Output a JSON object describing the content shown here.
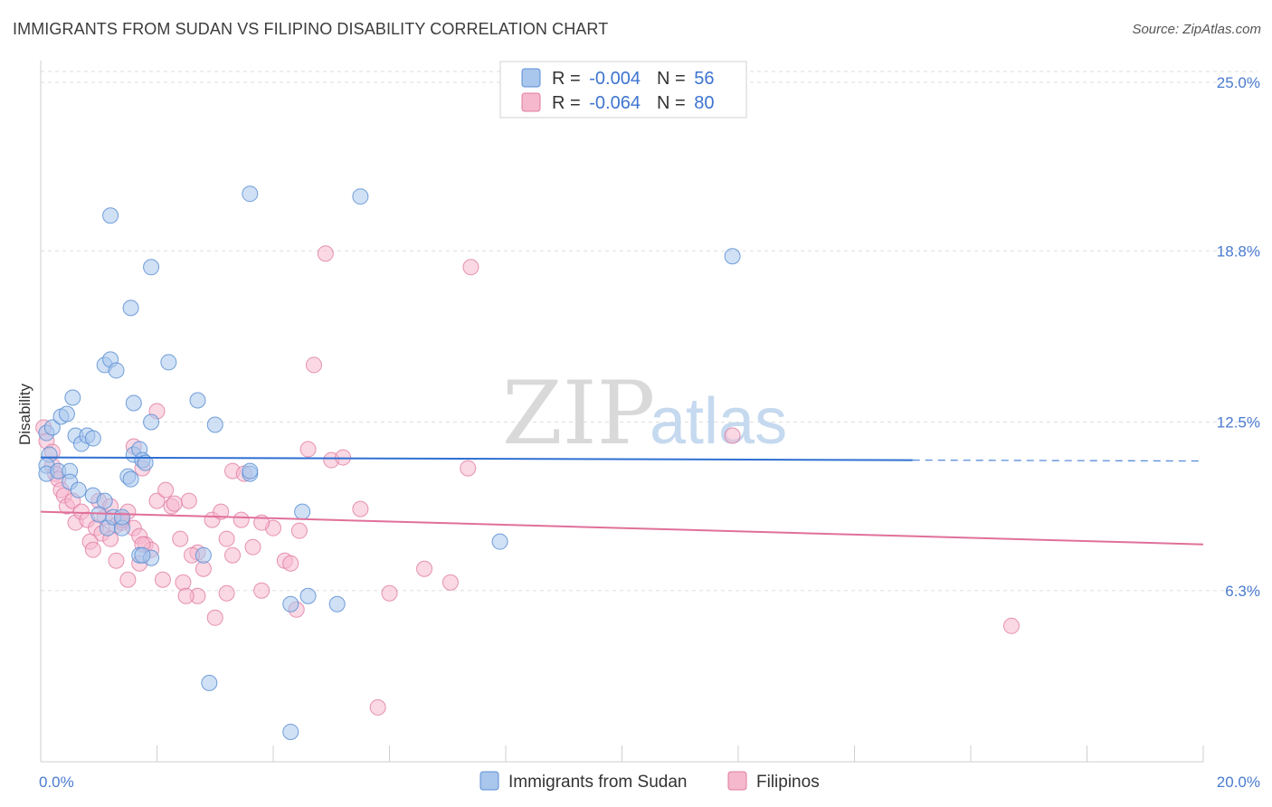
{
  "header": {
    "title": "IMMIGRANTS FROM SUDAN VS FILIPINO DISABILITY CORRELATION CHART",
    "source": "Source: ZipAtlas.com"
  },
  "watermark": {
    "zip": "ZIP",
    "atlas": "atlas"
  },
  "colors": {
    "sudan_fill": "#a9c6ec",
    "sudan_stroke": "#5b8fd4",
    "sudan_line": "#2f6fd3",
    "filipino_fill": "#f5b8cd",
    "filipino_stroke": "#e07ba0",
    "filipino_line": "#e0709a",
    "grid": "#dedede",
    "axis_text": "#4a7bd0"
  },
  "legend": {
    "sudan": {
      "r_label": "R = ",
      "r_value": "-0.004",
      "n_label": "N = ",
      "n_value": "56"
    },
    "filipino": {
      "r_label": "R = ",
      "r_value": "-0.064",
      "n_label": "N = ",
      "n_value": "80"
    }
  },
  "chart_data": {
    "type": "scatter",
    "title": "IMMIGRANTS FROM SUDAN VS FILIPINO DISABILITY CORRELATION CHART",
    "xlabel": "",
    "ylabel": "Disability",
    "xlim": [
      0,
      20
    ],
    "ylim": [
      0,
      25.8
    ],
    "x_tick_labels": [
      "0.0%",
      "20.0%"
    ],
    "y_ticks": [
      6.3,
      12.5,
      18.8,
      25.0
    ],
    "y_tick_labels": [
      "6.3%",
      "12.5%",
      "18.8%",
      "25.0%"
    ],
    "grid": true,
    "series": [
      {
        "name": "Immigrants from Sudan",
        "trend": {
          "x": [
            0,
            15
          ],
          "y": [
            11.2,
            11.1
          ],
          "dashed_to_x": 20
        },
        "points": [
          [
            0.1,
            12.1
          ],
          [
            0.15,
            11.3
          ],
          [
            0.1,
            10.9
          ],
          [
            0.1,
            10.6
          ],
          [
            0.3,
            10.7
          ],
          [
            0.2,
            12.3
          ],
          [
            0.35,
            12.7
          ],
          [
            0.45,
            12.8
          ],
          [
            0.55,
            13.4
          ],
          [
            0.6,
            12.0
          ],
          [
            0.7,
            11.7
          ],
          [
            0.8,
            12.0
          ],
          [
            0.9,
            11.9
          ],
          [
            0.5,
            10.7
          ],
          [
            0.5,
            10.3
          ],
          [
            0.65,
            10.0
          ],
          [
            0.9,
            9.8
          ],
          [
            1.0,
            9.1
          ],
          [
            1.1,
            9.6
          ],
          [
            1.15,
            8.6
          ],
          [
            1.25,
            9.0
          ],
          [
            1.4,
            8.6
          ],
          [
            1.4,
            9.0
          ],
          [
            1.5,
            10.5
          ],
          [
            1.55,
            10.4
          ],
          [
            1.6,
            11.3
          ],
          [
            1.7,
            11.5
          ],
          [
            1.75,
            11.1
          ],
          [
            1.8,
            11.0
          ],
          [
            1.9,
            12.5
          ],
          [
            1.7,
            7.6
          ],
          [
            1.9,
            7.5
          ],
          [
            1.75,
            7.6
          ],
          [
            1.1,
            14.6
          ],
          [
            1.2,
            14.8
          ],
          [
            1.3,
            14.4
          ],
          [
            1.6,
            13.2
          ],
          [
            2.2,
            14.7
          ],
          [
            2.7,
            13.3
          ],
          [
            3.0,
            12.4
          ],
          [
            3.6,
            10.6
          ],
          [
            3.6,
            10.7
          ],
          [
            2.8,
            7.6
          ],
          [
            2.9,
            2.9
          ],
          [
            4.5,
            9.2
          ],
          [
            4.3,
            5.8
          ],
          [
            4.6,
            6.1
          ],
          [
            5.1,
            5.8
          ],
          [
            4.3,
            1.1
          ],
          [
            1.2,
            20.1
          ],
          [
            1.55,
            16.7
          ],
          [
            1.9,
            18.2
          ],
          [
            3.6,
            20.9
          ],
          [
            5.5,
            20.8
          ],
          [
            7.9,
            8.1
          ],
          [
            11.9,
            18.6
          ]
        ]
      },
      {
        "name": "Filipinos",
        "trend": {
          "x": [
            0,
            20
          ],
          "y": [
            9.2,
            8.0
          ]
        },
        "points": [
          [
            0.05,
            12.3
          ],
          [
            0.1,
            11.8
          ],
          [
            0.2,
            11.4
          ],
          [
            0.2,
            10.9
          ],
          [
            0.25,
            10.6
          ],
          [
            0.3,
            10.4
          ],
          [
            0.35,
            10.0
          ],
          [
            0.4,
            9.8
          ],
          [
            0.45,
            9.4
          ],
          [
            0.55,
            9.6
          ],
          [
            0.6,
            8.8
          ],
          [
            0.7,
            9.2
          ],
          [
            0.8,
            8.9
          ],
          [
            0.85,
            8.1
          ],
          [
            0.95,
            8.6
          ],
          [
            1.05,
            8.4
          ],
          [
            1.1,
            9.0
          ],
          [
            1.2,
            8.2
          ],
          [
            1.3,
            8.7
          ],
          [
            1.4,
            8.8
          ],
          [
            1.5,
            9.2
          ],
          [
            1.6,
            8.6
          ],
          [
            1.7,
            8.3
          ],
          [
            1.8,
            8.0
          ],
          [
            1.9,
            7.8
          ],
          [
            2.0,
            9.6
          ],
          [
            2.15,
            10.0
          ],
          [
            2.25,
            9.4
          ],
          [
            2.4,
            8.2
          ],
          [
            2.55,
            9.6
          ],
          [
            2.7,
            7.7
          ],
          [
            2.8,
            7.1
          ],
          [
            2.95,
            8.9
          ],
          [
            3.1,
            9.2
          ],
          [
            3.2,
            8.2
          ],
          [
            3.3,
            7.6
          ],
          [
            3.45,
            8.9
          ],
          [
            3.65,
            7.9
          ],
          [
            3.8,
            6.3
          ],
          [
            4.0,
            8.6
          ],
          [
            4.2,
            7.4
          ],
          [
            4.3,
            7.3
          ],
          [
            4.45,
            8.5
          ],
          [
            4.6,
            11.5
          ],
          [
            4.7,
            14.6
          ],
          [
            5.0,
            11.1
          ],
          [
            5.2,
            11.2
          ],
          [
            5.5,
            9.3
          ],
          [
            6.0,
            6.2
          ],
          [
            6.6,
            7.1
          ],
          [
            7.05,
            6.6
          ],
          [
            7.35,
            10.8
          ],
          [
            1.6,
            11.6
          ],
          [
            1.75,
            10.8
          ],
          [
            1.75,
            8.0
          ],
          [
            2.0,
            12.9
          ],
          [
            2.7,
            6.1
          ],
          [
            3.0,
            5.3
          ],
          [
            2.3,
            9.5
          ],
          [
            2.45,
            6.6
          ],
          [
            2.6,
            7.6
          ],
          [
            3.3,
            10.7
          ],
          [
            3.5,
            10.6
          ],
          [
            1.3,
            7.4
          ],
          [
            1.5,
            6.7
          ],
          [
            1.7,
            7.3
          ],
          [
            2.1,
            6.7
          ],
          [
            2.5,
            6.1
          ],
          [
            3.2,
            6.2
          ],
          [
            4.4,
            5.6
          ],
          [
            5.8,
            2.0
          ],
          [
            3.8,
            8.8
          ],
          [
            4.9,
            18.7
          ],
          [
            7.4,
            18.2
          ],
          [
            11.9,
            12.0
          ],
          [
            16.7,
            5.0
          ],
          [
            1.0,
            9.6
          ],
          [
            1.4,
            8.9
          ],
          [
            1.2,
            9.4
          ],
          [
            0.9,
            7.8
          ]
        ]
      }
    ],
    "legend_position": "top-center",
    "bottom_legend": [
      "Immigrants from Sudan",
      "Filipinos"
    ]
  }
}
